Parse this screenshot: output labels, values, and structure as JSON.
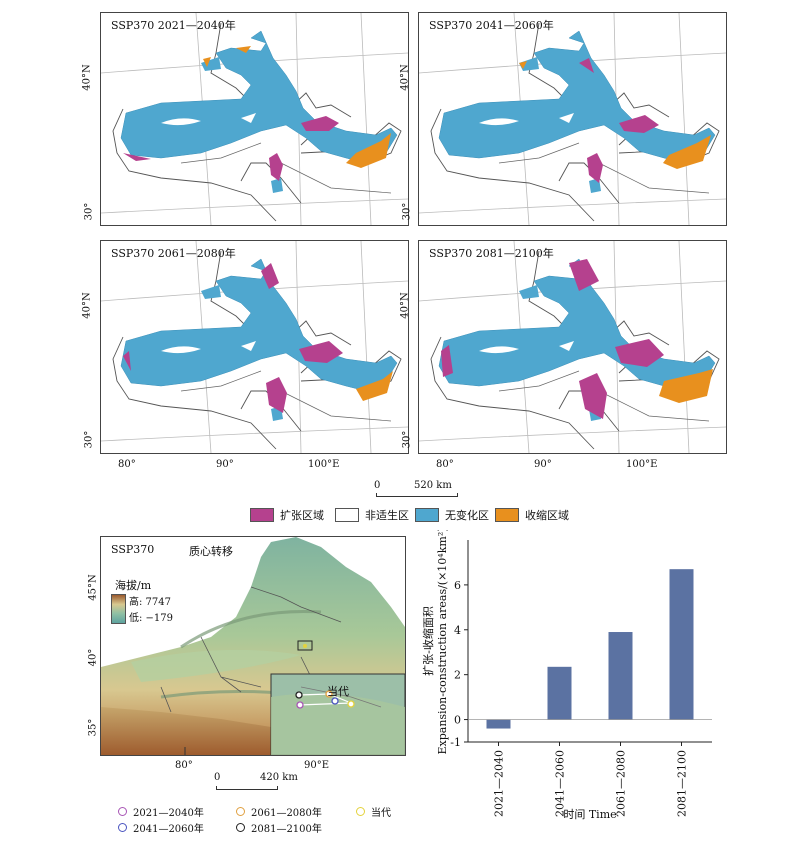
{
  "panels": [
    {
      "title": "SSP370 2021—2040年"
    },
    {
      "title": "SSP370 2041—2060年"
    },
    {
      "title": "SSP370 2061—2080年"
    },
    {
      "title": "SSP370 2081—2100年"
    }
  ],
  "axes": {
    "lat_labels": [
      "40°N",
      "30°"
    ],
    "lon_labels": [
      "80°",
      "90°",
      "100°E"
    ]
  },
  "scale_top": {
    "zero": "0",
    "dist": "520 km"
  },
  "legend": [
    {
      "label": "扩张区域",
      "color": "#b5418e"
    },
    {
      "label": "非适生区",
      "color": "#ffffff"
    },
    {
      "label": "无变化区",
      "color": "#4fa7cf"
    },
    {
      "label": "收缩区域",
      "color": "#e8901e"
    }
  ],
  "elev_map": {
    "title": "SSP370",
    "subtitle": "质心转移",
    "elev_title": "海拔/m",
    "high": "高: 7747",
    "low": "低: −179",
    "lat_labels": [
      "45°N",
      "40°",
      "35°"
    ],
    "lon_labels": [
      "80°",
      "90°E"
    ],
    "inset_label": "当代",
    "scale": {
      "zero": "0",
      "dist": "420 km"
    }
  },
  "centroid_legend": [
    {
      "label": "2021—2040年",
      "color": "#a855b5"
    },
    {
      "label": "2061—2080年",
      "color": "#e0a040"
    },
    {
      "label": "当代",
      "color": "#e4d23c"
    },
    {
      "label": "2041—2060年",
      "color": "#4b55c0"
    },
    {
      "label": "2081—2100年",
      "color": "#222222"
    }
  ],
  "chart_data": {
    "type": "bar",
    "categories": [
      "2021—2040",
      "2041—2060",
      "2061—2080",
      "2081—2100"
    ],
    "values": [
      -0.4,
      2.35,
      3.9,
      6.7
    ],
    "ylabel_cn": "扩张-收缩面积",
    "ylabel_en": "Expansion-construction areas/(×10⁴km²)",
    "xlabel": "时间 Time",
    "ylim": [
      -1,
      8
    ],
    "yticks": [
      -1,
      0,
      2,
      4,
      6
    ],
    "bar_color": "#5b72a2"
  }
}
